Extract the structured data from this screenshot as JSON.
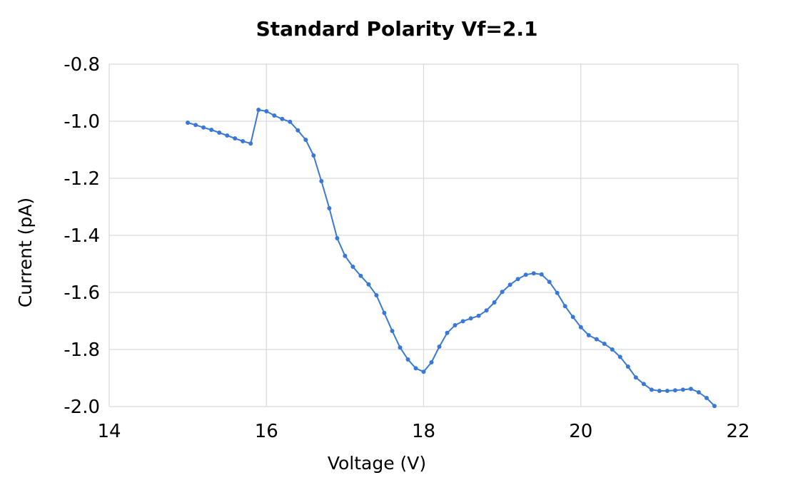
{
  "chart_data": {
    "type": "line",
    "title": "Standard Polarity Vf=2.1",
    "xlabel": "Voltage (V)",
    "ylabel": "Current (pA)",
    "xlim": [
      14,
      22
    ],
    "ylim": [
      -2.0,
      -0.8
    ],
    "xticks": [
      "14",
      "16",
      "18",
      "20",
      "22"
    ],
    "yticks": [
      "-0.8",
      "-1.0",
      "-1.2",
      "-1.4",
      "-1.6",
      "-1.8",
      "-2.0"
    ],
    "xtick_values": [
      14,
      16,
      18,
      20,
      22
    ],
    "ytick_values": [
      -0.8,
      -1.0,
      -1.2,
      -1.4,
      -1.6,
      -1.8,
      -2.0
    ],
    "grid": true,
    "legend": "none",
    "series": [
      {
        "color": "#3a78d8",
        "x": [
          15.0,
          15.1,
          15.2,
          15.3,
          15.4,
          15.5,
          15.6,
          15.7,
          15.8,
          15.9,
          16.0,
          16.1,
          16.2,
          16.3,
          16.4,
          16.5,
          16.6,
          16.7,
          16.8,
          16.9,
          17.0,
          17.1,
          17.2,
          17.3,
          17.4,
          17.5,
          17.6,
          17.7,
          17.8,
          17.9,
          18.0,
          18.1,
          18.2,
          18.3,
          18.4,
          18.5,
          18.6,
          18.7,
          18.8,
          18.9,
          19.0,
          19.1,
          19.2,
          19.3,
          19.4,
          19.5,
          19.6,
          19.7,
          19.8,
          19.9,
          20.0,
          20.1,
          20.2,
          20.3,
          20.4,
          20.5,
          20.6,
          20.7,
          20.8,
          20.9,
          21.0,
          21.1,
          21.2,
          21.3,
          21.4,
          21.5,
          21.6,
          21.7
        ],
        "y": [
          -1.005,
          -1.013,
          -1.022,
          -1.03,
          -1.04,
          -1.05,
          -1.06,
          -1.07,
          -1.078,
          -0.96,
          -0.965,
          -0.98,
          -0.992,
          -1.002,
          -1.032,
          -1.065,
          -1.12,
          -1.21,
          -1.305,
          -1.41,
          -1.472,
          -1.51,
          -1.542,
          -1.572,
          -1.61,
          -1.672,
          -1.735,
          -1.793,
          -1.835,
          -1.866,
          -1.878,
          -1.845,
          -1.79,
          -1.742,
          -1.715,
          -1.701,
          -1.691,
          -1.682,
          -1.663,
          -1.635,
          -1.598,
          -1.573,
          -1.553,
          -1.538,
          -1.533,
          -1.537,
          -1.563,
          -1.602,
          -1.648,
          -1.686,
          -1.722,
          -1.75,
          -1.764,
          -1.78,
          -1.8,
          -1.826,
          -1.86,
          -1.898,
          -1.921,
          -1.941,
          -1.945,
          -1.945,
          -1.943,
          -1.941,
          -1.938,
          -1.95,
          -1.97,
          -1.998
        ]
      }
    ]
  }
}
